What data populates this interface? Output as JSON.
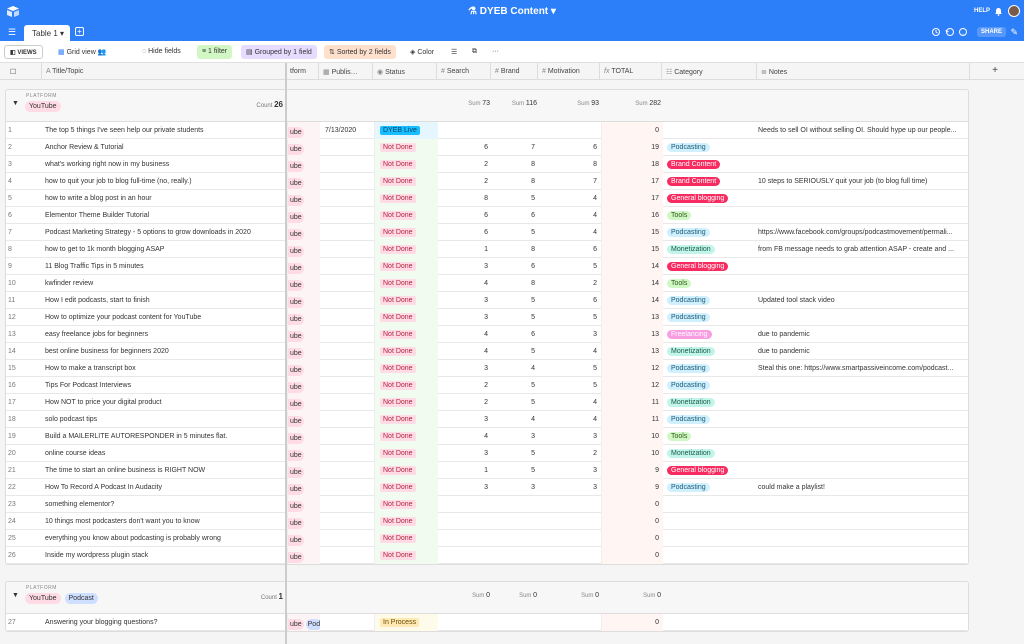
{
  "app": {
    "base_name": "DYEB Content",
    "help": "HELP",
    "share": "SHARE"
  },
  "tabs": [
    {
      "label": "Table 1"
    }
  ],
  "toolbar": {
    "views": "VIEWS",
    "view_name": "Grid view",
    "hide_fields": "Hide fields",
    "filter": "1 filter",
    "group": "Grouped by 1 field",
    "sort": "Sorted by 2 fields",
    "color": "Color"
  },
  "columns": {
    "title": "Title/Topic",
    "platform": "tform",
    "published": "Publis…",
    "status": "Status",
    "search": "Search",
    "brand": "Brand",
    "motivation": "Motivation",
    "total": "TOTAL",
    "category": "Category",
    "notes": "Notes"
  },
  "colors": {
    "accent": "#2d7ff9",
    "not_done_bg": "#ffdce5",
    "not_done_fg": "#b2243f",
    "live_bg": "#18bfff",
    "in_process_bg": "#ffeab6",
    "podcasting": "#d0f0fd",
    "brand_content": "#f82b60",
    "general_blogging": "#f82b60",
    "tools": "#d1f7c4",
    "monetization": "#c2f5e9",
    "freelancing": "#f99de2"
  },
  "groups": [
    {
      "label": "PLATFORM",
      "tags": [
        "YouTube"
      ],
      "count_label": "Count",
      "count": "26",
      "sum_label": "Sum",
      "sums": {
        "search": "73",
        "brand": "116",
        "motivation": "93",
        "total": "282"
      },
      "rows": [
        {
          "n": "1",
          "title": "The top 5 things I've seen help our private students",
          "platform": "ube",
          "published": "7/13/2020",
          "status": "DYEB Live",
          "search": "",
          "brand": "",
          "motivation": "",
          "total": "0",
          "category": "",
          "notes": "Needs to sell OI without selling OI. Should hype up our people..."
        },
        {
          "n": "2",
          "title": "Anchor Review & Tutorial",
          "platform": "ube",
          "published": "",
          "status": "Not Done",
          "search": "6",
          "brand": "7",
          "motivation": "6",
          "total": "19",
          "category": "Podcasting",
          "notes": ""
        },
        {
          "n": "3",
          "title": "what's working right now in my business",
          "platform": "ube",
          "published": "",
          "status": "Not Done",
          "search": "2",
          "brand": "8",
          "motivation": "8",
          "total": "18",
          "category": "Brand Content",
          "notes": ""
        },
        {
          "n": "4",
          "title": "how to quit your job to blog full-time (no, really.)",
          "platform": "ube",
          "published": "",
          "status": "Not Done",
          "search": "2",
          "brand": "8",
          "motivation": "7",
          "total": "17",
          "category": "Brand Content",
          "notes": "10 steps to SERIOUSLY quit your job (to blog full time)"
        },
        {
          "n": "5",
          "title": "how to write a blog post in an hour",
          "platform": "ube",
          "published": "",
          "status": "Not Done",
          "search": "8",
          "brand": "5",
          "motivation": "4",
          "total": "17",
          "category": "General blogging",
          "notes": ""
        },
        {
          "n": "6",
          "title": "Elementor Theme Builder Tutorial",
          "platform": "ube",
          "published": "",
          "status": "Not Done",
          "search": "6",
          "brand": "6",
          "motivation": "4",
          "total": "16",
          "category": "Tools",
          "notes": ""
        },
        {
          "n": "7",
          "title": "Podcast Marketing Strategy - 5 options to grow downloads in 2020",
          "platform": "ube",
          "published": "",
          "status": "Not Done",
          "search": "6",
          "brand": "5",
          "motivation": "4",
          "total": "15",
          "category": "Podcasting",
          "notes": "https://www.facebook.com/groups/podcastmovement/permali..."
        },
        {
          "n": "8",
          "title": "how to get to 1k month blogging ASAP",
          "platform": "ube",
          "published": "",
          "status": "Not Done",
          "search": "1",
          "brand": "8",
          "motivation": "6",
          "total": "15",
          "category": "Monetization",
          "notes": "from FB message needs to grab attention ASAP - create and ..."
        },
        {
          "n": "9",
          "title": "11 Blog Traffic Tips in 5 minutes",
          "platform": "ube",
          "published": "",
          "status": "Not Done",
          "search": "3",
          "brand": "6",
          "motivation": "5",
          "total": "14",
          "category": "General blogging",
          "notes": ""
        },
        {
          "n": "10",
          "title": "kwfinder review",
          "platform": "ube",
          "published": "",
          "status": "Not Done",
          "search": "4",
          "brand": "8",
          "motivation": "2",
          "total": "14",
          "category": "Tools",
          "notes": ""
        },
        {
          "n": "11",
          "title": "How I edit podcasts, start to finish",
          "platform": "ube",
          "published": "",
          "status": "Not Done",
          "search": "3",
          "brand": "5",
          "motivation": "6",
          "total": "14",
          "category": "Podcasting",
          "notes": "Updated tool stack video"
        },
        {
          "n": "12",
          "title": "How to optimize your podcast content for YouTube",
          "platform": "ube",
          "published": "",
          "status": "Not Done",
          "search": "3",
          "brand": "5",
          "motivation": "5",
          "total": "13",
          "category": "Podcasting",
          "notes": ""
        },
        {
          "n": "13",
          "title": "easy freelance jobs for beginners",
          "platform": "ube",
          "published": "",
          "status": "Not Done",
          "search": "4",
          "brand": "6",
          "motivation": "3",
          "total": "13",
          "category": "Freelancing",
          "notes": "due to pandemic"
        },
        {
          "n": "14",
          "title": "best online business for beginners 2020",
          "platform": "ube",
          "published": "",
          "status": "Not Done",
          "search": "4",
          "brand": "5",
          "motivation": "4",
          "total": "13",
          "category": "Monetization",
          "notes": "due to pandemic"
        },
        {
          "n": "15",
          "title": "How to make a transcript box",
          "platform": "ube",
          "published": "",
          "status": "Not Done",
          "search": "3",
          "brand": "4",
          "motivation": "5",
          "total": "12",
          "category": "Podcasting",
          "notes": "Steal this one: https://www.smartpassiveincome.com/podcast..."
        },
        {
          "n": "16",
          "title": "Tips For Podcast Interviews",
          "platform": "ube",
          "published": "",
          "status": "Not Done",
          "search": "2",
          "brand": "5",
          "motivation": "5",
          "total": "12",
          "category": "Podcasting",
          "notes": ""
        },
        {
          "n": "17",
          "title": "How NOT to price your digital product",
          "platform": "ube",
          "published": "",
          "status": "Not Done",
          "search": "2",
          "brand": "5",
          "motivation": "4",
          "total": "11",
          "category": "Monetization",
          "notes": ""
        },
        {
          "n": "18",
          "title": "solo podcast tips",
          "platform": "ube",
          "published": "",
          "status": "Not Done",
          "search": "3",
          "brand": "4",
          "motivation": "4",
          "total": "11",
          "category": "Podcasting",
          "notes": ""
        },
        {
          "n": "19",
          "title": "Build a MAILERLITE AUTORESPONDER in 5 minutes flat.",
          "platform": "ube",
          "published": "",
          "status": "Not Done",
          "search": "4",
          "brand": "3",
          "motivation": "3",
          "total": "10",
          "category": "Tools",
          "notes": ""
        },
        {
          "n": "20",
          "title": "online course ideas",
          "platform": "ube",
          "published": "",
          "status": "Not Done",
          "search": "3",
          "brand": "5",
          "motivation": "2",
          "total": "10",
          "category": "Monetization",
          "notes": ""
        },
        {
          "n": "21",
          "title": "The time to start an online business is RIGHT NOW",
          "platform": "ube",
          "published": "",
          "status": "Not Done",
          "search": "1",
          "brand": "5",
          "motivation": "3",
          "total": "9",
          "category": "General blogging",
          "notes": ""
        },
        {
          "n": "22",
          "title": "How To Record A Podcast In Audacity",
          "platform": "ube",
          "published": "",
          "status": "Not Done",
          "search": "3",
          "brand": "3",
          "motivation": "3",
          "total": "9",
          "category": "Podcasting",
          "notes": "could make a playlist!"
        },
        {
          "n": "23",
          "title": "something elementor?",
          "platform": "ube",
          "published": "",
          "status": "Not Done",
          "search": "",
          "brand": "",
          "motivation": "",
          "total": "0",
          "category": "",
          "notes": ""
        },
        {
          "n": "24",
          "title": "10 things most podcasters don't want you to know",
          "platform": "ube",
          "published": "",
          "status": "Not Done",
          "search": "",
          "brand": "",
          "motivation": "",
          "total": "0",
          "category": "",
          "notes": ""
        },
        {
          "n": "25",
          "title": "everything you know about podcasting is probably wrong",
          "platform": "ube",
          "published": "",
          "status": "Not Done",
          "search": "",
          "brand": "",
          "motivation": "",
          "total": "0",
          "category": "",
          "notes": ""
        },
        {
          "n": "26",
          "title": "Inside my wordpress plugin stack",
          "platform": "ube",
          "published": "",
          "status": "Not Done",
          "search": "",
          "brand": "",
          "motivation": "",
          "total": "0",
          "category": "",
          "notes": ""
        }
      ]
    },
    {
      "label": "PLATFORM",
      "tags": [
        "YouTube",
        "Podcast"
      ],
      "count_label": "Count",
      "count": "1",
      "sum_label": "Sum",
      "sums": {
        "search": "0",
        "brand": "0",
        "motivation": "0",
        "total": "0"
      },
      "rows": [
        {
          "n": "27",
          "title": "Answering your blogging questions?",
          "platform": "ube",
          "platform2": "Pod",
          "published": "",
          "status": "In Process",
          "search": "",
          "brand": "",
          "motivation": "",
          "total": "0",
          "category": "",
          "notes": ""
        }
      ]
    }
  ]
}
